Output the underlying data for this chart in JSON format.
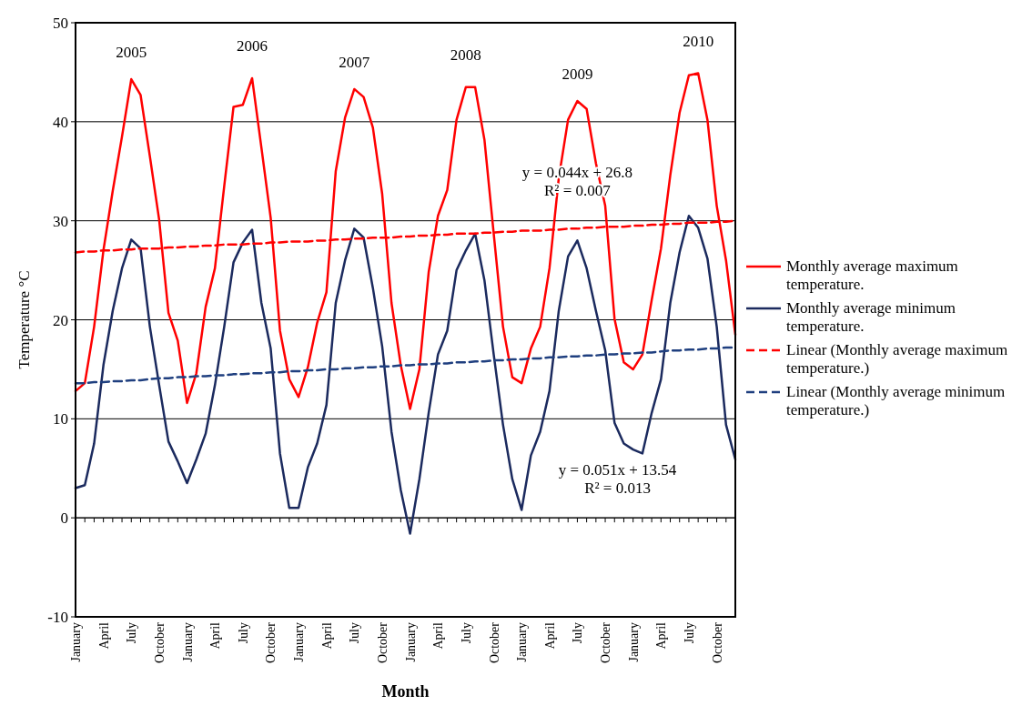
{
  "chart_data": {
    "type": "line",
    "xlabel": "Month",
    "ylabel": "Temperature °C",
    "categories": [
      "January",
      null,
      null,
      "April",
      null,
      null,
      "July",
      null,
      null,
      "October",
      null,
      null,
      "January",
      null,
      null,
      "April",
      null,
      null,
      "July",
      null,
      null,
      "October",
      null,
      null,
      "January",
      null,
      null,
      "April",
      null,
      null,
      "July",
      null,
      null,
      "October",
      null,
      null,
      "January",
      null,
      null,
      "April",
      null,
      null,
      "July",
      null,
      null,
      "October",
      null,
      null,
      "January",
      null,
      null,
      "April",
      null,
      null,
      "July",
      null,
      null,
      "October",
      null,
      null,
      "January",
      null,
      null,
      "April",
      null,
      null,
      "July",
      null,
      null,
      "October",
      null,
      null
    ],
    "ylim": [
      -10,
      50
    ],
    "yticks": [
      -10,
      0,
      10,
      20,
      30,
      40,
      50
    ],
    "grid": "y",
    "legend": "right",
    "marker": "none",
    "series": [
      {
        "name": "Monthly average maximum temperature.",
        "color": "#ff0000",
        "line_style": "solid",
        "values": [
          12.8,
          13.6,
          19.3,
          27,
          33,
          38.5,
          44.3,
          42.7,
          36.5,
          30.1,
          20.7,
          17.9,
          11.6,
          14.6,
          21.3,
          25.2,
          33.5,
          41.5,
          41.7,
          44.4,
          37.4,
          30.3,
          18.9,
          14,
          12.2,
          15.2,
          19.7,
          22.8,
          35,
          40.4,
          43.3,
          42.5,
          39.4,
          32.7,
          21.7,
          15.4,
          11,
          15,
          24.8,
          30.5,
          33.1,
          40.2,
          43.5,
          43.5,
          38.2,
          28.7,
          19.3,
          14.2,
          13.6,
          17.1,
          19.3,
          25.2,
          34.3,
          40.2,
          42.1,
          41.3,
          35.8,
          31.5,
          20.1,
          15.7,
          15,
          16.5,
          22,
          27.2,
          34.6,
          40.9,
          44.7,
          44.9,
          40.2,
          31.5,
          26,
          18.5
        ]
      },
      {
        "name": "Monthly average minimum temperature.",
        "color": "#1b2a5e",
        "line_style": "solid",
        "values": [
          3,
          3.3,
          7.5,
          15.4,
          20.9,
          25.2,
          28.1,
          27.2,
          19.3,
          13.4,
          7.7,
          5.7,
          3.5,
          5.9,
          8.5,
          13.4,
          19.3,
          25.8,
          27.8,
          29.1,
          21.7,
          17.1,
          6.5,
          1,
          1,
          5.1,
          7.5,
          11.4,
          21.7,
          26,
          29.2,
          28.3,
          23.2,
          17.3,
          8.7,
          2.8,
          -1.6,
          3.9,
          10.6,
          16.5,
          18.9,
          25,
          27,
          28.7,
          24,
          16.5,
          9.4,
          3.9,
          0.8,
          6.3,
          8.7,
          12.8,
          20.9,
          26.4,
          28,
          25.2,
          20.9,
          16.9,
          9.6,
          7.5,
          6.9,
          6.5,
          10.6,
          14,
          21.7,
          26.8,
          30.5,
          29.3,
          26.2,
          19.3,
          9.4,
          5.9
        ]
      },
      {
        "name": "Linear (Monthly average maximum temperature.)",
        "color": "#ff0000",
        "line_style": "dashed",
        "values": [
          26.8,
          26.9,
          26.9,
          27,
          27,
          27.1,
          27.1,
          27.2,
          27.2,
          27.2,
          27.3,
          27.3,
          27.4,
          27.4,
          27.5,
          27.5,
          27.6,
          27.6,
          27.6,
          27.7,
          27.7,
          27.8,
          27.8,
          27.9,
          27.9,
          27.9,
          28,
          28,
          28.1,
          28.1,
          28.2,
          28.2,
          28.3,
          28.3,
          28.3,
          28.4,
          28.4,
          28.5,
          28.5,
          28.6,
          28.6,
          28.7,
          28.7,
          28.7,
          28.8,
          28.8,
          28.9,
          28.9,
          29,
          29,
          29,
          29.1,
          29.1,
          29.2,
          29.2,
          29.3,
          29.3,
          29.4,
          29.4,
          29.4,
          29.5,
          29.5,
          29.6,
          29.6,
          29.7,
          29.7,
          29.8,
          29.8,
          29.8,
          29.9,
          29.9,
          30
        ]
      },
      {
        "name": "Linear (Monthly average minimum temperature.)",
        "color": "#1f3f7f",
        "line_style": "dashed",
        "values": [
          13.6,
          13.6,
          13.7,
          13.7,
          13.8,
          13.8,
          13.9,
          13.9,
          14,
          14.1,
          14.1,
          14.2,
          14.2,
          14.3,
          14.3,
          14.4,
          14.4,
          14.5,
          14.5,
          14.6,
          14.6,
          14.7,
          14.7,
          14.8,
          14.8,
          14.9,
          14.9,
          15,
          15,
          15.1,
          15.1,
          15.2,
          15.2,
          15.3,
          15.3,
          15.4,
          15.4,
          15.5,
          15.5,
          15.6,
          15.6,
          15.7,
          15.7,
          15.8,
          15.8,
          15.9,
          15.9,
          16,
          16,
          16.1,
          16.1,
          16.2,
          16.2,
          16.3,
          16.3,
          16.4,
          16.4,
          16.5,
          16.5,
          16.6,
          16.6,
          16.7,
          16.7,
          16.8,
          16.9,
          16.9,
          17,
          17,
          17.1,
          17.1,
          17.2,
          17.2
        ]
      }
    ],
    "annotations": [
      "2005",
      "2006",
      "2007",
      "2008",
      "2009",
      "2010",
      "y = 0.044x + 26.8\nR² = 0.007",
      "y = 0.051x + 13.54\nR² = 0.013"
    ]
  }
}
